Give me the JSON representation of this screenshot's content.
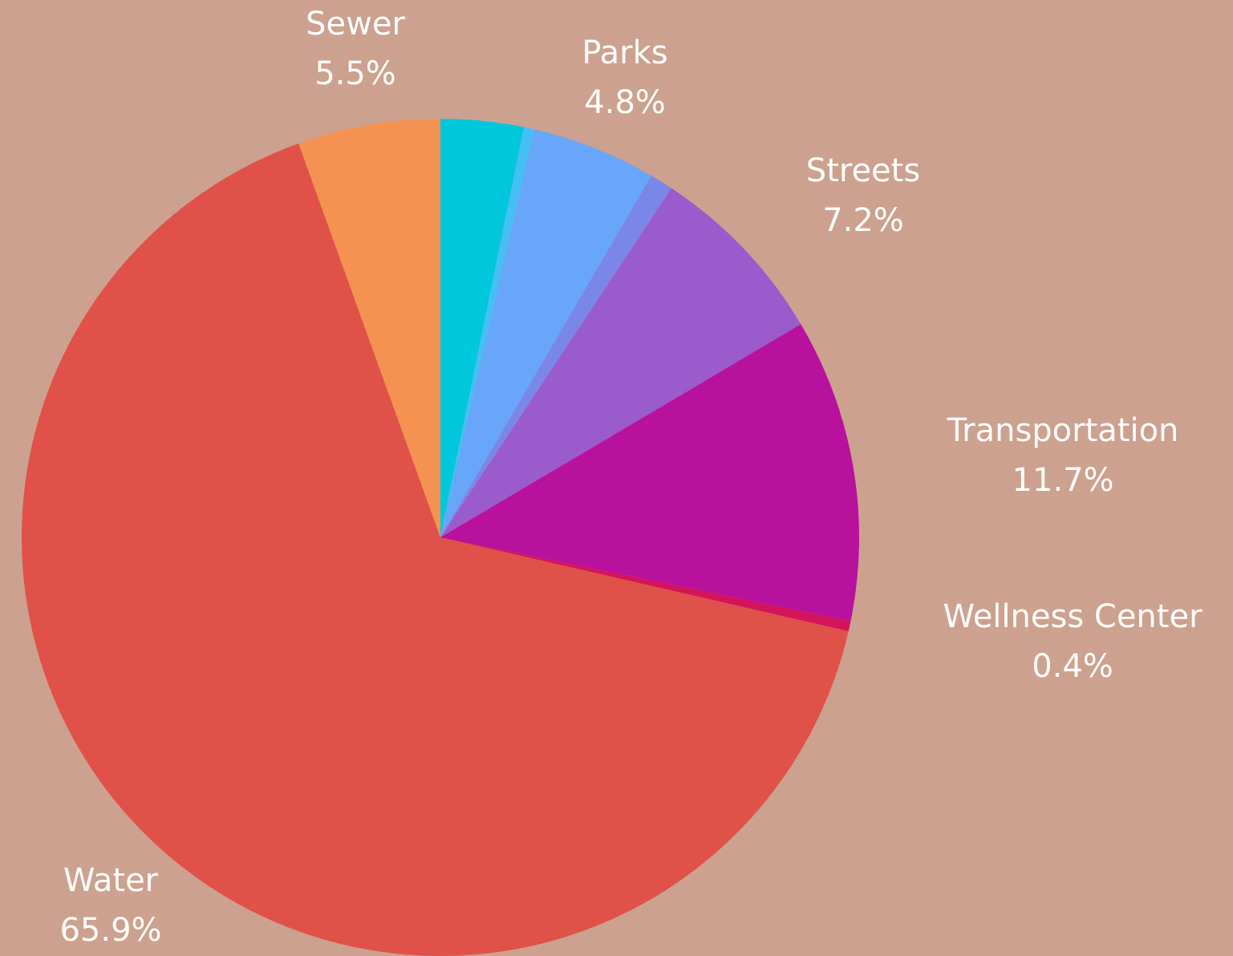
{
  "chart_data": {
    "type": "pie",
    "categories": [
      null,
      null,
      "Parks",
      null,
      "Streets",
      "Transportation",
      "Wellness Center",
      "Water",
      "Sewer"
    ],
    "values": [
      3.2,
      0.4,
      4.8,
      0.9,
      7.2,
      11.7,
      0.4,
      65.9,
      5.5
    ],
    "value_labels": [
      null,
      null,
      "4.8%",
      null,
      "7.2%",
      "11.7%",
      "0.4%",
      "65.9%",
      "5.5%"
    ],
    "colors": [
      "#00c8dc",
      "#45c0f5",
      "#68a6fa",
      "#7b87e8",
      "#9a5ccc",
      "#b7119e",
      "#d4145a",
      "#e05149",
      "#f59252"
    ],
    "background": "#cca18f"
  }
}
